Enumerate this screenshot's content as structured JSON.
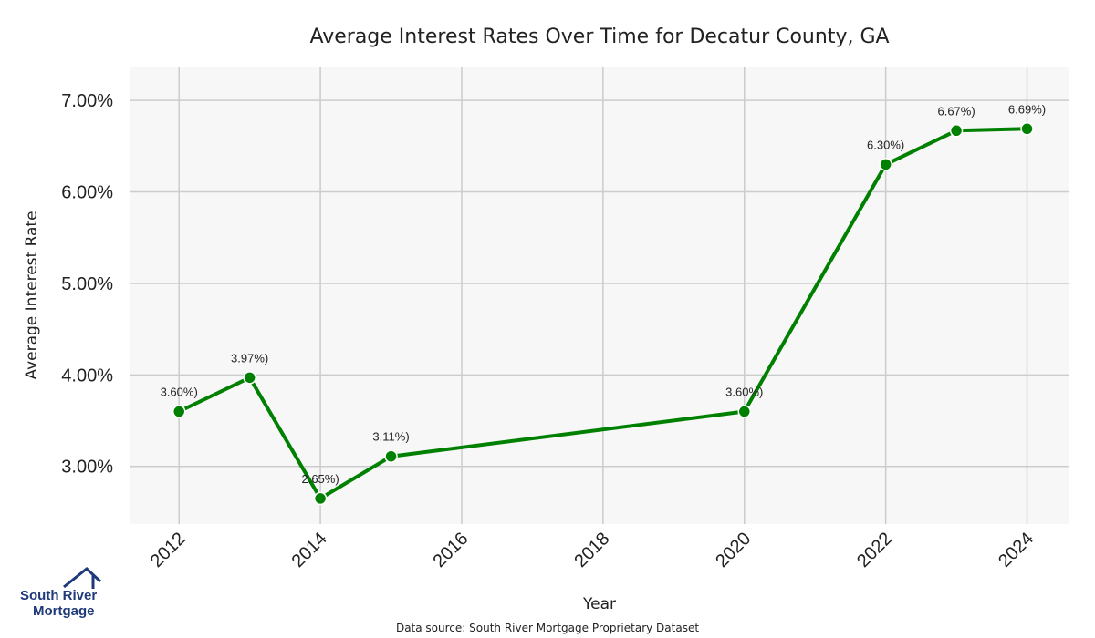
{
  "chart_data": {
    "type": "line",
    "title": "Average Interest Rates Over Time for Decatur County, GA",
    "xlabel": "Year",
    "ylabel": "Average Interest Rate",
    "x": [
      2012,
      2013,
      2014,
      2015,
      2020,
      2022,
      2023,
      2024
    ],
    "values": [
      3.6,
      3.97,
      2.65,
      3.11,
      3.6,
      6.3,
      6.67,
      6.69
    ],
    "data_labels": [
      "3.60%)",
      "3.97%)",
      "2.65%)",
      "3.11%)",
      "3.60%)",
      "6.30%)",
      "6.67%)",
      "6.69%)"
    ],
    "xticks": [
      "2012",
      "2014",
      "2016",
      "2018",
      "2020",
      "2022",
      "2024"
    ],
    "xtick_values": [
      2012,
      2014,
      2016,
      2018,
      2020,
      2022,
      2024
    ],
    "yticks": [
      "3.00%",
      "4.00%",
      "5.00%",
      "6.00%",
      "7.00%"
    ],
    "ytick_values": [
      3,
      4,
      5,
      6,
      7
    ],
    "xlim": [
      2011.3,
      2024.6
    ],
    "ylim": [
      2.37,
      7.37
    ],
    "grid": true,
    "line_color": "#008000",
    "plot_background": "#f7f7f7",
    "grid_color": "#cccccc"
  },
  "source_note": "Data source: South River Mortgage Proprietary Dataset",
  "logo": {
    "line1": "South River",
    "line2": "Mortgage",
    "color": "#1f3a7a"
  }
}
